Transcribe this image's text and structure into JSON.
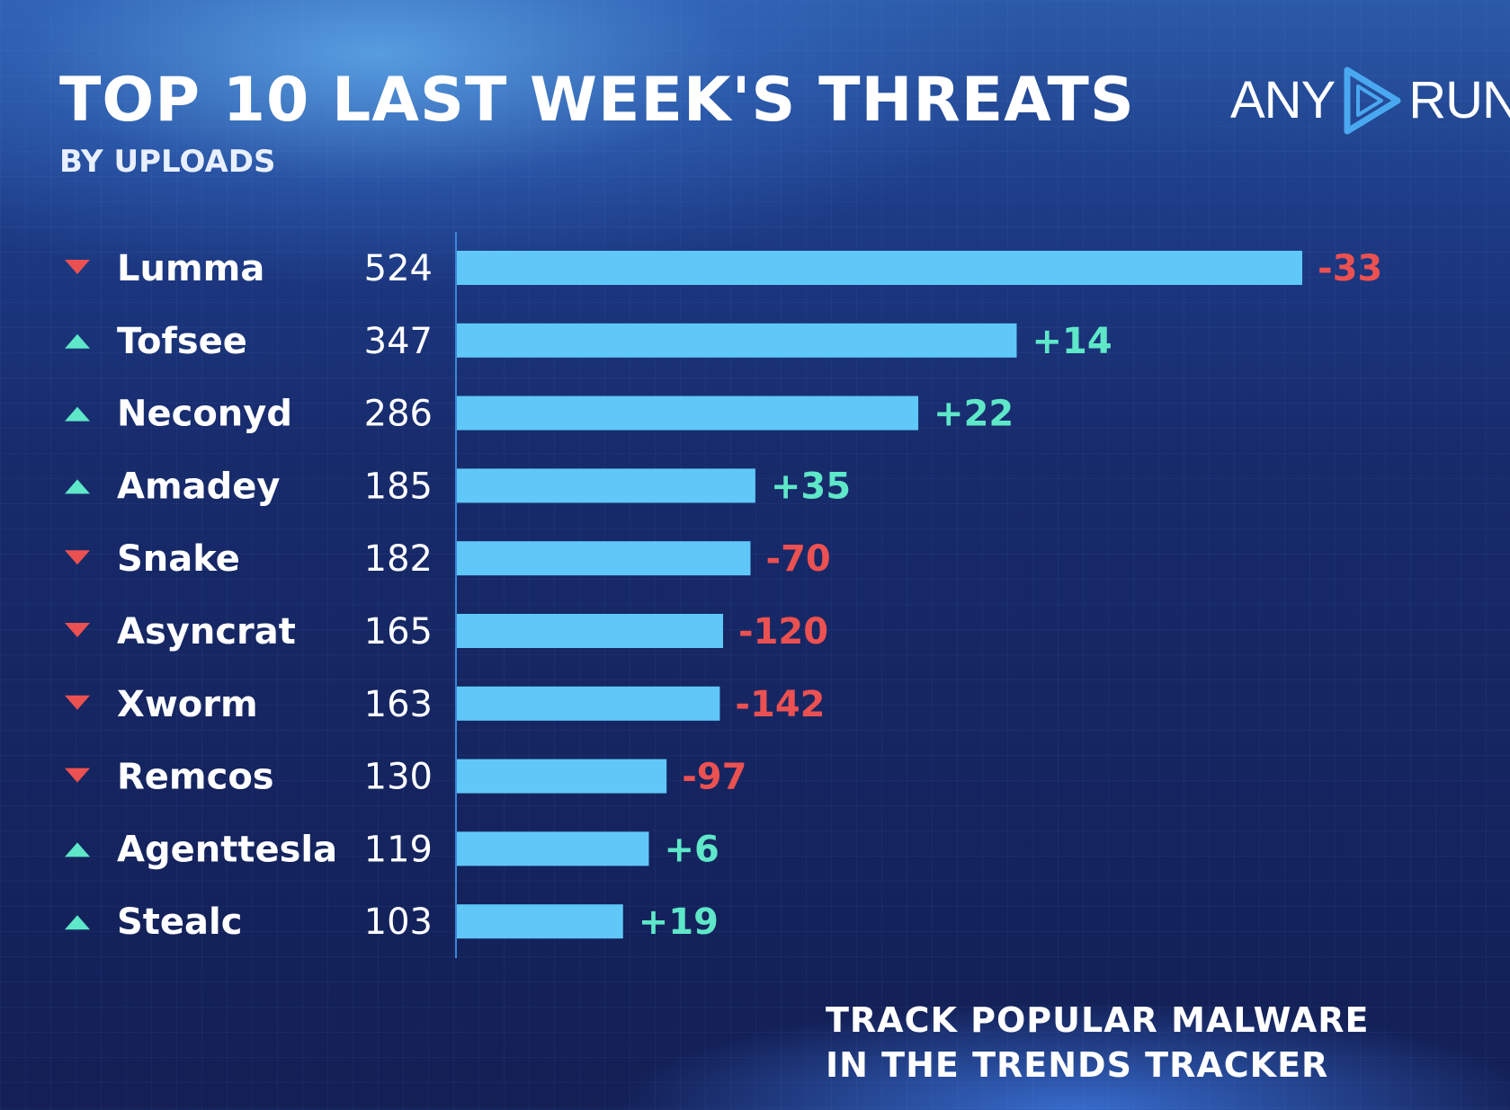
{
  "title": "TOP 10 LAST WEEK'S THREATS",
  "subtitle": "BY UPLOADS",
  "logo": {
    "left": "ANY",
    "right": "RUN",
    "icon": "play-triangle-icon"
  },
  "cta": {
    "line1": "TRACK POPULAR MALWARE",
    "line2": "IN THE TRENDS TRACKER"
  },
  "colors": {
    "bar": "#5fc8f8",
    "up": "#5ee7c8",
    "down": "#ec5151"
  },
  "chart_data": {
    "type": "bar",
    "orientation": "horizontal",
    "title": "TOP 10 LAST WEEK'S THREATS",
    "subtitle": "BY UPLOADS",
    "categories": [
      "Lumma",
      "Tofsee",
      "Neconyd",
      "Amadey",
      "Snake",
      "Asyncrat",
      "Xworm",
      "Remcos",
      "Agenttesla",
      "Stealc"
    ],
    "values": [
      524,
      347,
      286,
      185,
      182,
      165,
      163,
      130,
      119,
      103
    ],
    "change_labels": [
      "-33",
      "+14",
      "+22",
      "+35",
      "-70",
      "-120",
      "-142",
      "-97",
      "+6",
      "+19"
    ],
    "trend": [
      "down",
      "up",
      "up",
      "up",
      "down",
      "down",
      "down",
      "down",
      "up",
      "up"
    ],
    "grid": false,
    "legend": "none"
  }
}
